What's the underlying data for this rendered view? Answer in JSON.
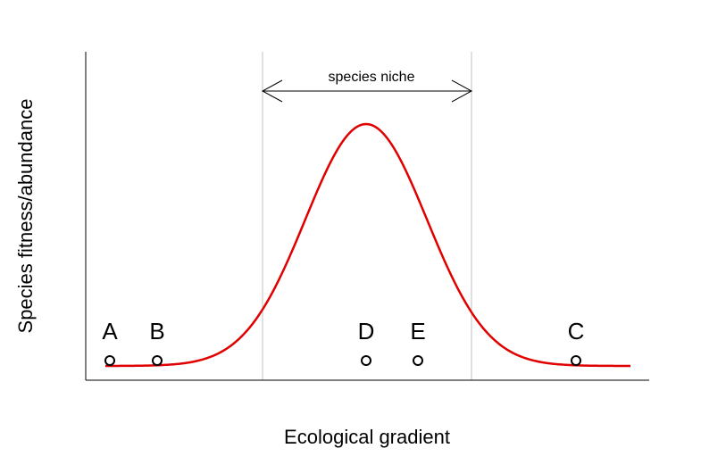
{
  "diagram": {
    "ylabel": "Species fitness/abundance",
    "xlabel": "Ecological gradient",
    "niche_label": "species niche",
    "curve_color": "#e00000",
    "guide_color": "#c0c0c0",
    "sites": [
      {
        "label": "A"
      },
      {
        "label": "B"
      },
      {
        "label": "D"
      },
      {
        "label": "E"
      },
      {
        "label": "C"
      }
    ]
  }
}
